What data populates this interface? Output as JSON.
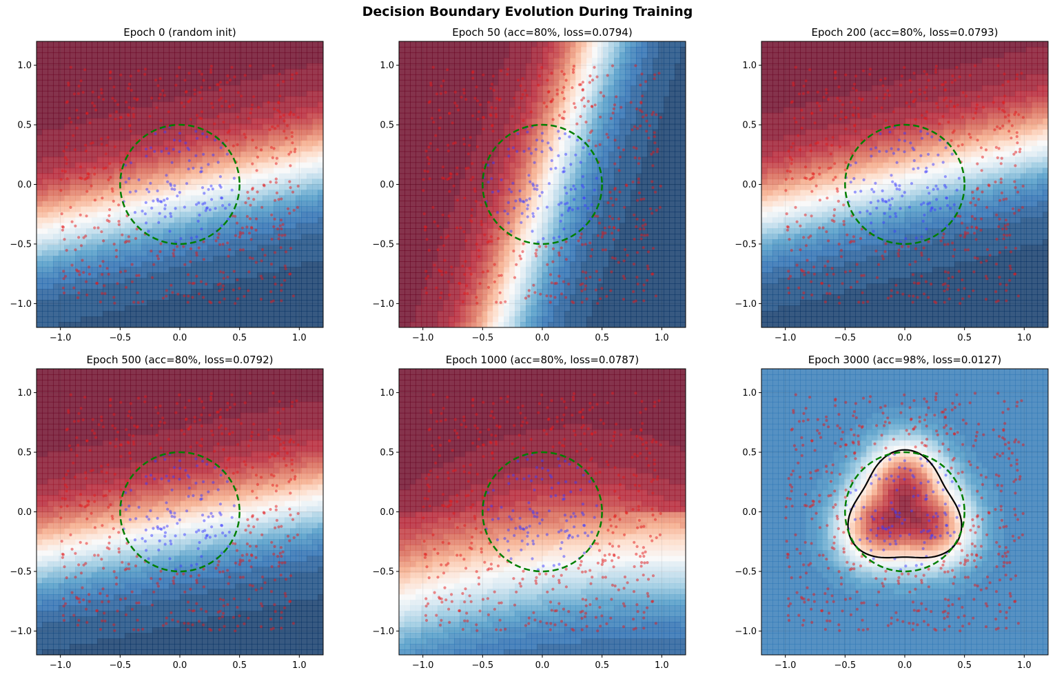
{
  "figure": {
    "suptitle": "Decision Boundary Evolution During Training",
    "colors": {
      "negative_low": "#2166ac",
      "positive_high": "#b2182b",
      "class0_points": "#e41a1c",
      "class1_points": "#3b3bff",
      "true_boundary": "#007f00",
      "learned_boundary": "#000000"
    }
  },
  "chart_data": [
    {
      "type": "heatmap",
      "title": "Epoch 0 (random init)",
      "xlim": [
        -1.2,
        1.2
      ],
      "ylim": [
        -1.2,
        1.2
      ],
      "xticks": [
        -1.0,
        -0.5,
        0.0,
        0.5,
        1.0
      ],
      "yticks": [
        -1.0,
        -0.5,
        0.0,
        0.5,
        1.0
      ],
      "xticklabels": [
        "−1.0",
        "−0.5",
        "0.0",
        "0.5",
        "1.0"
      ],
      "yticklabels": [
        "−1.0",
        "−0.5",
        "0.0",
        "0.5",
        "1.0"
      ],
      "colormap": "RdBu_r",
      "grid": true,
      "field": {
        "kind": "linear",
        "a": -0.25,
        "b": 1.0,
        "c": 0.1,
        "scale": 0.85
      },
      "true_boundary": {
        "shape": "circle",
        "radius": 0.5,
        "style": "dashed"
      }
    },
    {
      "type": "heatmap",
      "title": "Epoch 50 (acc=80%, loss=0.0794)",
      "xlim": [
        -1.2,
        1.2
      ],
      "ylim": [
        -1.2,
        1.2
      ],
      "xticks": [
        -1.0,
        -0.5,
        0.0,
        0.5,
        1.0
      ],
      "yticks": [
        -1.0,
        -0.5,
        0.0,
        0.5,
        1.0
      ],
      "xticklabels": [
        "−1.0",
        "−0.5",
        "0.0",
        "0.5",
        "1.0"
      ],
      "yticklabels": [
        "−1.0",
        "−0.5",
        "0.0",
        "0.5",
        "1.0"
      ],
      "colormap": "RdBu_r",
      "grid": true,
      "field": {
        "kind": "linear",
        "a": -1.0,
        "b": 0.35,
        "c": 0.05,
        "scale": 0.75
      },
      "true_boundary": {
        "shape": "circle",
        "radius": 0.5,
        "style": "dashed"
      }
    },
    {
      "type": "heatmap",
      "title": "Epoch 200 (acc=80%, loss=0.0793)",
      "xlim": [
        -1.2,
        1.2
      ],
      "ylim": [
        -1.2,
        1.2
      ],
      "xticks": [
        -1.0,
        -0.5,
        0.0,
        0.5,
        1.0
      ],
      "yticks": [
        -1.0,
        -0.5,
        0.0,
        0.5,
        1.0
      ],
      "xticklabels": [
        "−1.0",
        "−0.5",
        "0.0",
        "0.5",
        "1.0"
      ],
      "yticklabels": [
        "−1.0",
        "−0.5",
        "0.0",
        "0.5",
        "1.0"
      ],
      "colormap": "RdBu_r",
      "grid": true,
      "field": {
        "kind": "linear",
        "a": -0.25,
        "b": 1.0,
        "c": -0.05,
        "scale": 0.85
      },
      "true_boundary": {
        "shape": "circle",
        "radius": 0.5,
        "style": "dashed"
      }
    },
    {
      "type": "heatmap",
      "title": "Epoch 500 (acc=80%, loss=0.0792)",
      "xlim": [
        -1.2,
        1.2
      ],
      "ylim": [
        -1.2,
        1.2
      ],
      "xticks": [
        -1.0,
        -0.5,
        0.0,
        0.5,
        1.0
      ],
      "yticks": [
        -1.0,
        -0.5,
        0.0,
        0.5,
        1.0
      ],
      "xticklabels": [
        "−1.0",
        "−0.5",
        "0.0",
        "0.5",
        "1.0"
      ],
      "yticklabels": [
        "−1.0",
        "−0.5",
        "0.0",
        "0.5",
        "1.0"
      ],
      "colormap": "RdBu_r",
      "grid": true,
      "field": {
        "kind": "linear",
        "a": -0.2,
        "b": 1.0,
        "c": 0.12,
        "scale": 0.85
      },
      "true_boundary": {
        "shape": "circle",
        "radius": 0.5,
        "style": "dashed"
      }
    },
    {
      "type": "heatmap",
      "title": "Epoch 1000 (acc=80%, loss=0.0787)",
      "xlim": [
        -1.2,
        1.2
      ],
      "ylim": [
        -1.2,
        1.2
      ],
      "xticks": [
        -1.0,
        -0.5,
        0.0,
        0.5,
        1.0
      ],
      "yticks": [
        -1.0,
        -0.5,
        0.0,
        0.5,
        1.0
      ],
      "xticklabels": [
        "−1.0",
        "−0.5",
        "0.0",
        "0.5",
        "1.0"
      ],
      "yticklabels": [
        "−1.0",
        "−0.5",
        "0.0",
        "0.5",
        "1.0"
      ],
      "colormap": "RdBu_r",
      "grid": true,
      "field": {
        "kind": "curved",
        "a": -0.15,
        "b": 1.0,
        "c": 0.45,
        "scale": 0.9
      },
      "true_boundary": {
        "shape": "circle",
        "radius": 0.5,
        "style": "dashed"
      }
    },
    {
      "type": "heatmap",
      "title": "Epoch 3000 (acc=98%, loss=0.0127)",
      "xlim": [
        -1.2,
        1.2
      ],
      "ylim": [
        -1.2,
        1.2
      ],
      "xticks": [
        -1.0,
        -0.5,
        0.0,
        0.5,
        1.0
      ],
      "yticks": [
        -1.0,
        -0.5,
        0.0,
        0.5,
        1.0
      ],
      "xticklabels": [
        "−1.0",
        "−0.5",
        "0.0",
        "0.5",
        "1.0"
      ],
      "yticklabels": [
        "−1.0",
        "−0.5",
        "0.0",
        "0.5",
        "1.0"
      ],
      "colormap": "RdBu_r",
      "grid": true,
      "field": {
        "kind": "blob"
      },
      "true_boundary": {
        "shape": "circle",
        "radius": 0.5,
        "style": "dashed"
      },
      "learned_boundary": {
        "shape": "rounded-triangle",
        "level": 0.5,
        "style": "solid"
      }
    }
  ],
  "dataset": {
    "n_points": 600,
    "inner_class": {
      "label": 1,
      "radius_max": 0.5
    },
    "outer_class": {
      "label": 0,
      "radius_min": 0.5
    },
    "range": [
      -1.0,
      1.0
    ]
  }
}
